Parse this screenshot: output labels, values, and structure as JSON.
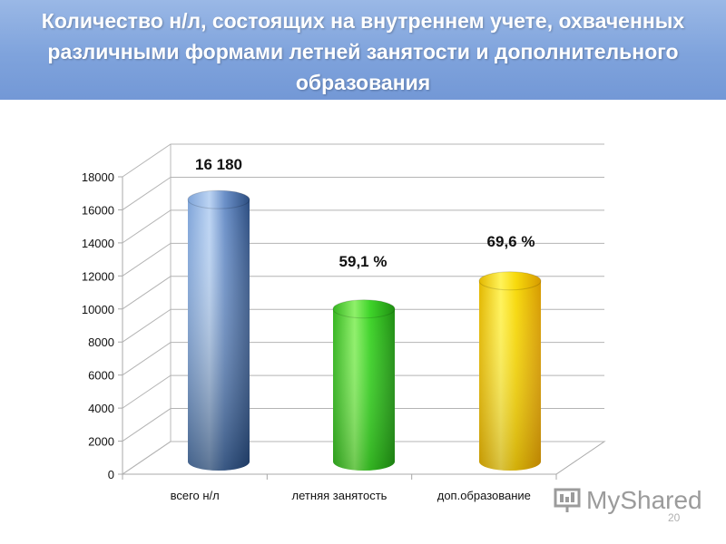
{
  "header": {
    "title": "Количество н/л, состоящих на внутреннем учете, охваченных различными формами летней занятости и дополнительного образования"
  },
  "chart_data": {
    "type": "bar",
    "categories": [
      "всего н/л",
      "летняя занятость",
      "доп.образование"
    ],
    "values": [
      16180,
      9562,
      11262
    ],
    "data_labels": [
      "16 180",
      "59,1 %",
      "69,6 %"
    ],
    "ylim": [
      0,
      18000
    ],
    "yticks": [
      "0",
      "2000",
      "4000",
      "6000",
      "8000",
      "10000",
      "12000",
      "14000",
      "16000",
      "18000"
    ],
    "grid": true,
    "colors": [
      "#3f67a0",
      "#3fcf2a",
      "#f2d20a"
    ]
  },
  "watermark": {
    "text": "MyShared"
  },
  "page_number": "20"
}
